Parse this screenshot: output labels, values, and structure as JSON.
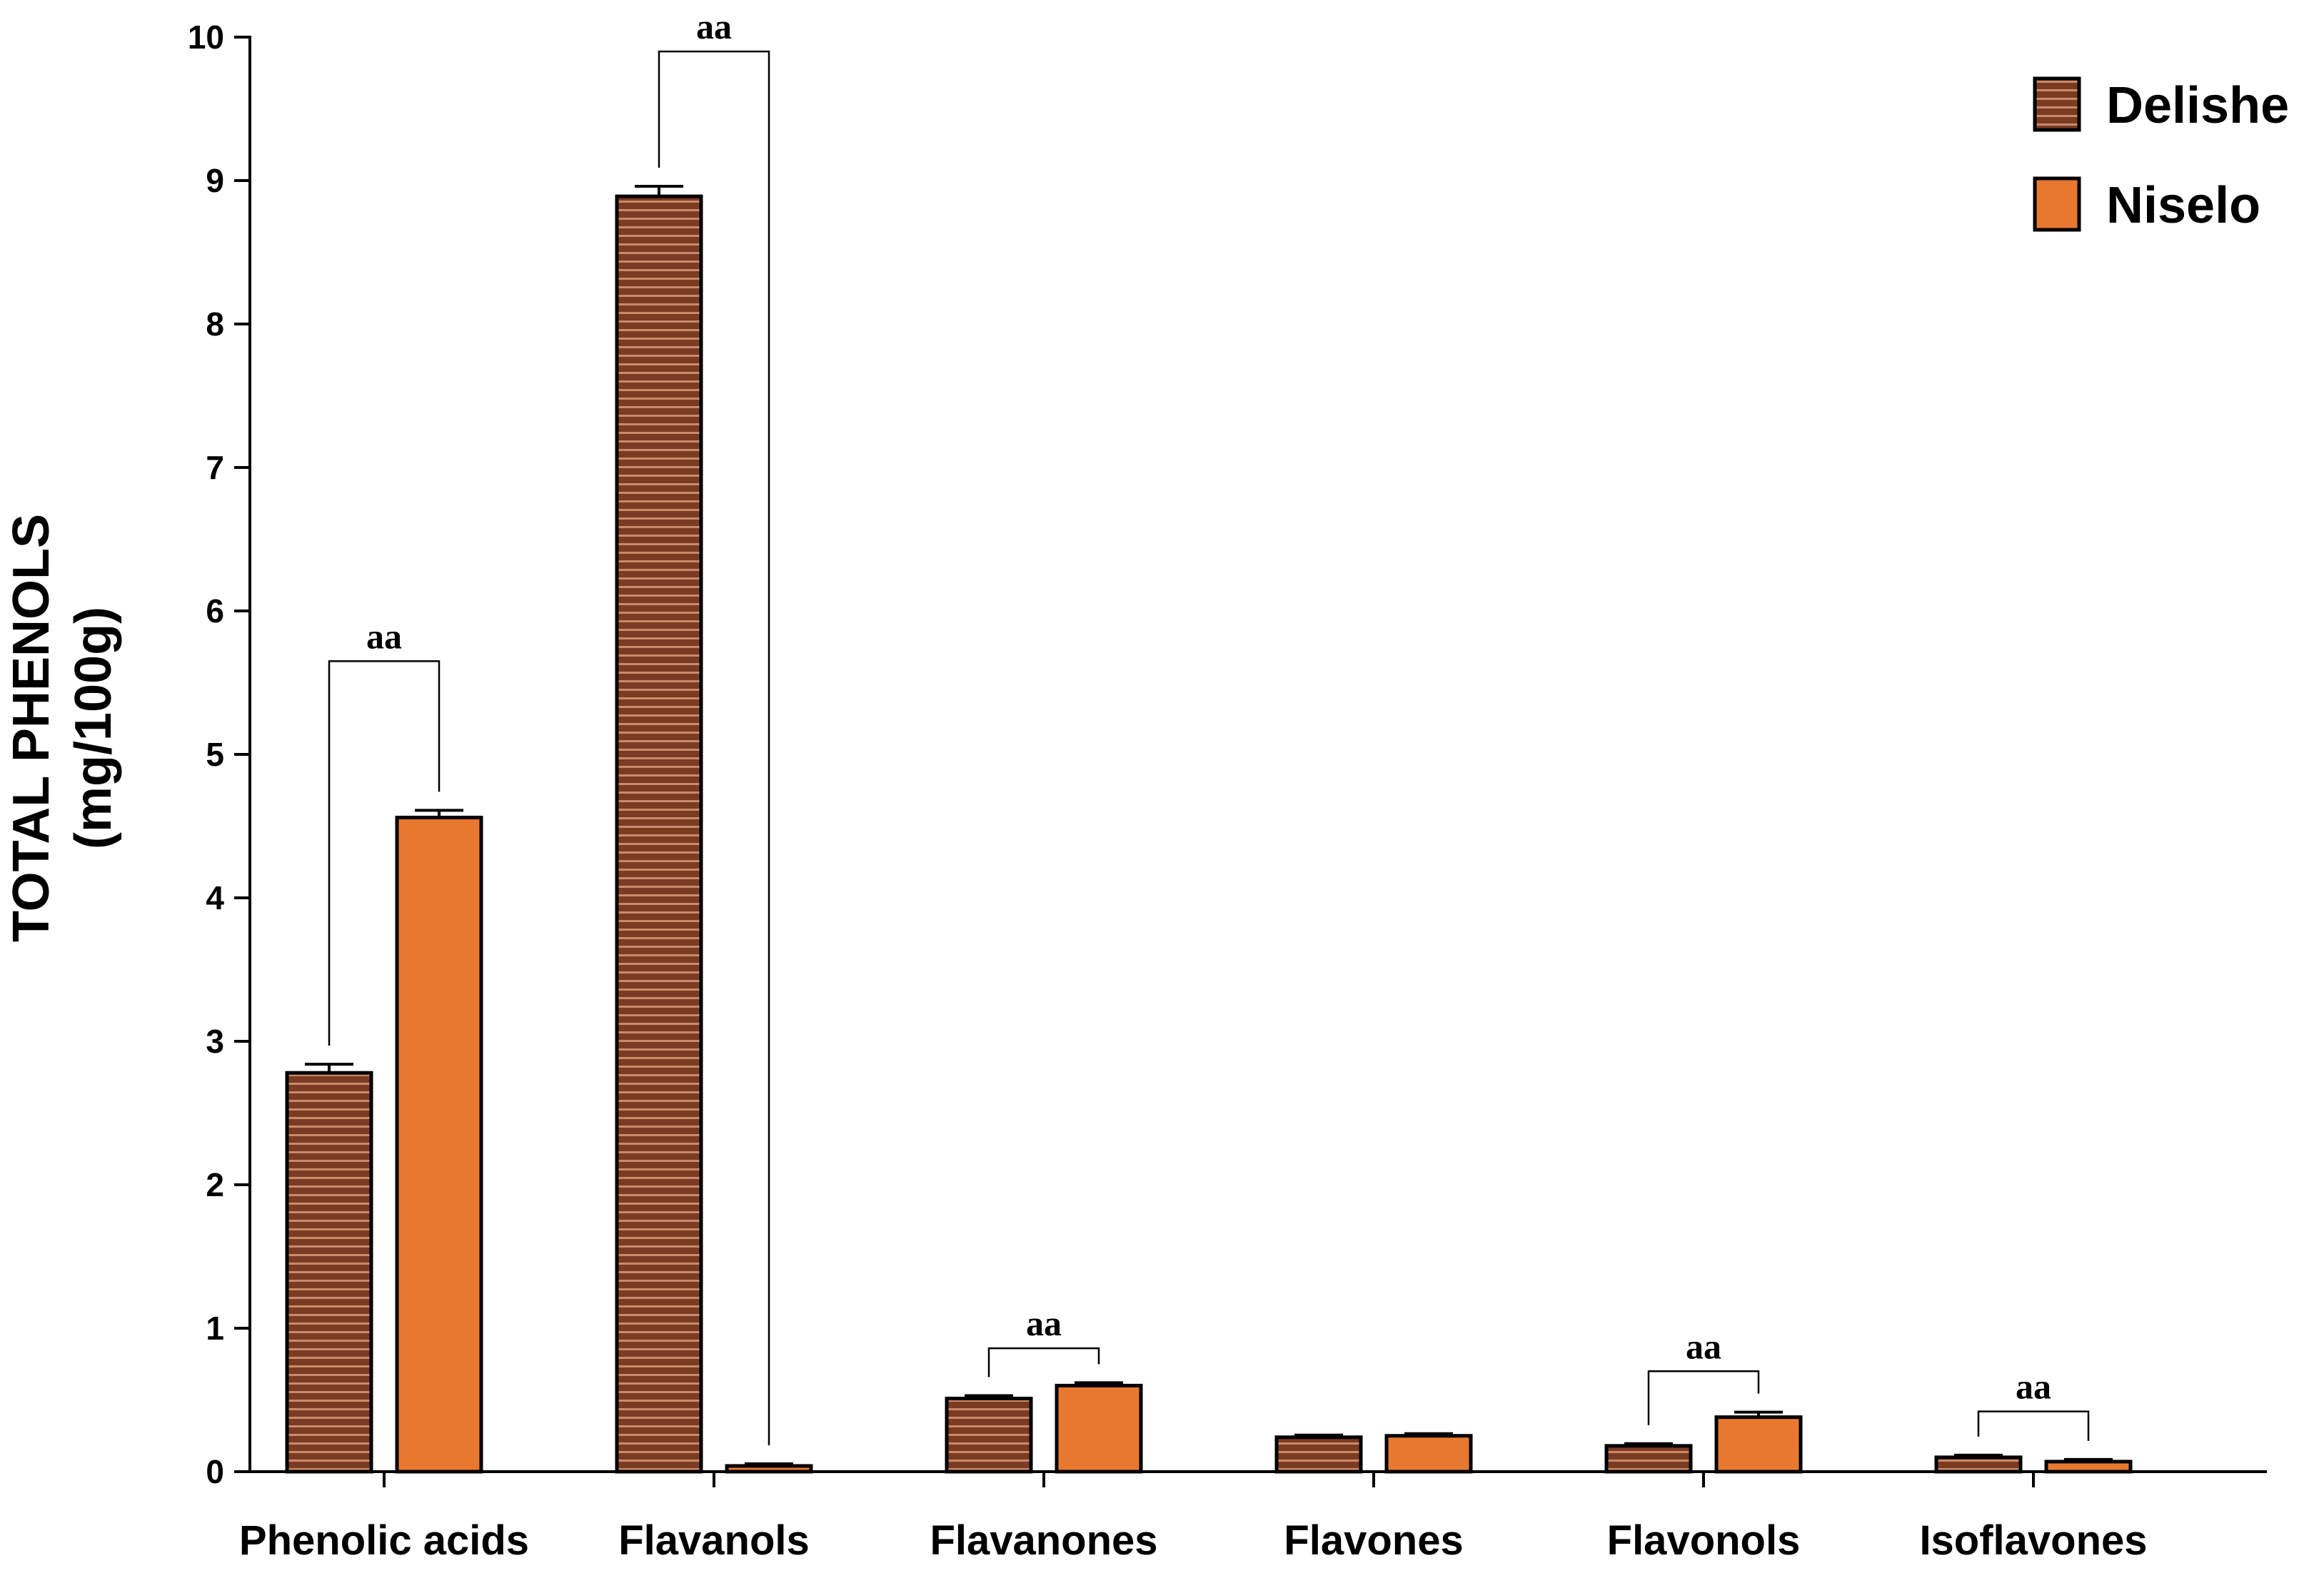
{
  "chart_data": {
    "type": "bar",
    "title": "",
    "xlabel": "",
    "ylabel_lines": [
      "TOTAL PHENOLS",
      "(mg/100g)"
    ],
    "ylim": [
      0,
      10
    ],
    "yticks": [
      "0",
      "1",
      "2",
      "3",
      "4",
      "5",
      "6",
      "7",
      "8",
      "9",
      "10"
    ],
    "grid": false,
    "legend_position": "top-right",
    "categories": [
      "Phenolic acids",
      "Flavanols",
      "Flavanones",
      "Flavones",
      "Flavonols",
      "Isoflavones"
    ],
    "series": [
      {
        "name": "Delishe",
        "color": "#7b3b22",
        "stripe_color": "#c98a6a",
        "values": [
          2.78,
          8.89,
          0.51,
          0.24,
          0.18,
          0.1
        ],
        "errors": [
          0.06,
          0.07,
          0.02,
          0.015,
          0.015,
          0.015
        ]
      },
      {
        "name": "Niselo",
        "color": "#e8782f",
        "values": [
          4.56,
          0.04,
          0.6,
          0.25,
          0.38,
          0.07
        ],
        "errors": [
          0.05,
          0.015,
          0.02,
          0.015,
          0.035,
          0.015
        ]
      }
    ],
    "annotations": [
      {
        "category": "Phenolic acids",
        "text": "aa",
        "level": 5.65
      },
      {
        "category": "Flavanols",
        "text": "aa",
        "level": 9.9
      },
      {
        "category": "Flavanones",
        "text": "aa",
        "level": 0.86
      },
      {
        "category": "Flavonols",
        "text": "aa",
        "level": 0.7
      },
      {
        "category": "Isoflavones",
        "text": "aa",
        "level": 0.42
      }
    ]
  }
}
